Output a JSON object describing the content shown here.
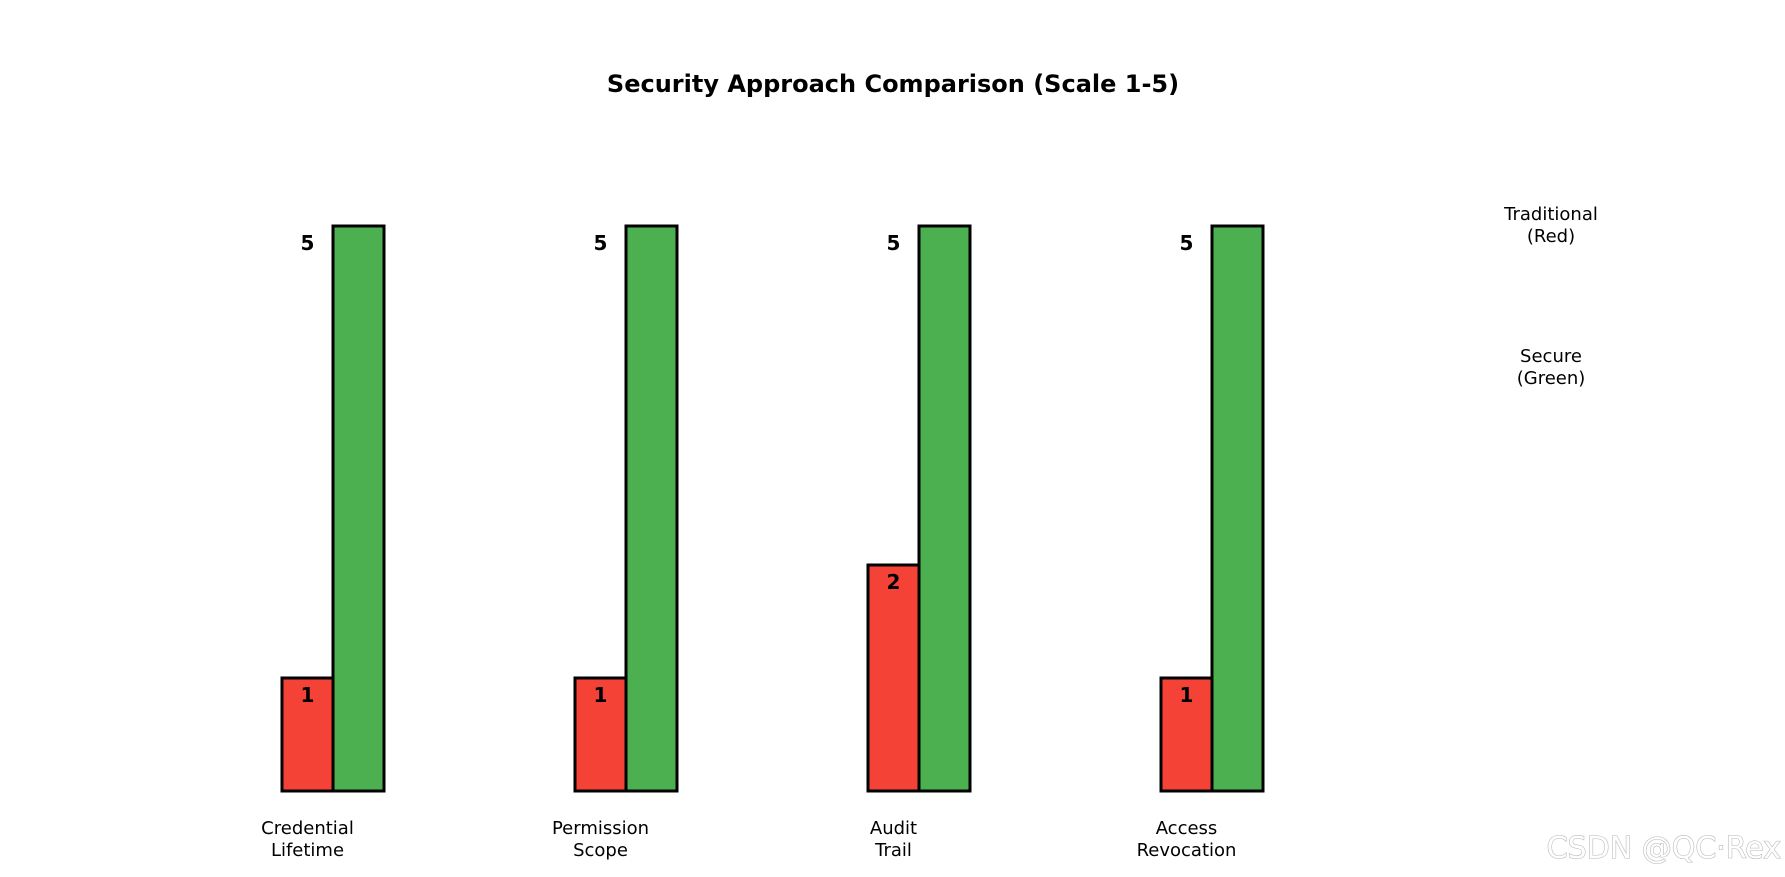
{
  "chart_data": {
    "type": "bar",
    "title": "Security Approach Comparison (Scale 1-5)",
    "categories": [
      "Credential\nLifetime",
      "Permission\nScope",
      "Audit\nTrail",
      "Access\nRevocation"
    ],
    "series": [
      {
        "name": "Traditional\n(Red)",
        "color": "#f44336",
        "values": [
          1,
          1,
          2,
          1
        ]
      },
      {
        "name": "Secure\n(Green)",
        "color": "#4caf50",
        "values": [
          5,
          5,
          5,
          5
        ]
      }
    ],
    "ylim": [
      0,
      5
    ],
    "xlabel": "",
    "ylabel": "",
    "legend_position": "right",
    "grid": false,
    "axes_visible": false
  },
  "watermark": "CSDN @QC·Rex"
}
